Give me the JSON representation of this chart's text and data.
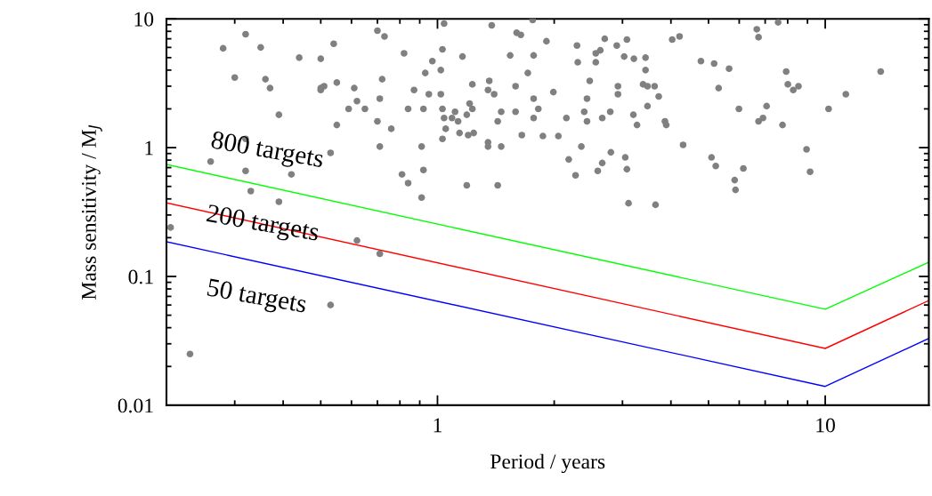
{
  "chart_data": {
    "type": "scatter",
    "xlabel": "Period / years",
    "ylabel": "Mass sensitivity / M$_{J}$",
    "log": "xy",
    "grid": false,
    "legend": false,
    "xlim": [
      0.2,
      18.5
    ],
    "ylim": [
      0.01,
      10
    ],
    "xticks": [
      1,
      10
    ],
    "yticks": [
      0.01,
      0.1,
      1,
      10
    ],
    "series": [
      {
        "type": "scatter",
        "color": "#808080",
        "marker": "circle",
        "x": [
          0.32,
          0.28,
          0.35,
          0.44,
          0.5,
          0.54,
          0.7,
          0.73,
          0.82,
          1.04,
          1.03,
          0.3,
          0.36,
          0.37,
          0.5,
          0.51,
          0.5,
          0.55,
          0.61,
          0.72,
          0.93,
          0.97,
          1.02,
          0.62,
          0.59,
          0.65,
          0.71,
          0.87,
          0.95,
          1.02,
          0.84,
          0.92,
          1.03,
          1.04,
          0.39,
          0.55,
          0.7,
          0.76,
          1.03,
          1.05,
          0.32,
          0.71,
          0.91,
          0.53,
          0.26,
          0.32,
          0.42,
          0.81,
          0.92,
          0.84,
          0.33,
          0.39,
          0.91,
          0.205,
          0.62,
          0.71,
          0.53,
          0.23,
          1.38,
          1.76,
          1.6,
          1.64,
          1.91,
          2.29,
          2.7,
          3.08,
          2.9,
          4.03,
          4.21,
          1.16,
          1.54,
          1.77,
          2.56,
          2.63,
          3.03,
          3.21,
          3.44,
          2.3,
          2.56,
          3.44,
          1.71,
          1.36,
          1.23,
          2.47,
          1.59,
          3.39,
          3.48,
          3.63,
          2.92,
          1.35,
          1.4,
          1.99,
          2.92,
          2.43,
          3.72,
          1.77,
          1.21,
          1.23,
          1.82,
          1.46,
          1.59,
          2.39,
          2.43,
          2.79,
          3.48,
          3.2,
          1.19,
          1.09,
          1.11,
          1.13,
          2.15,
          2.66,
          1.77,
          1.43,
          3.27,
          3.86,
          3.89,
          1.14,
          1.2,
          1.24,
          1.65,
          1.87,
          2.05,
          1.35,
          1.35,
          1.46,
          2.35,
          4.3,
          2.8,
          2.18,
          3.05,
          2.66,
          3.08,
          2.59,
          2.27,
          1.19,
          1.43,
          3.11,
          3.65,
          7.56,
          6.66,
          6.73,
          4.78,
          5.17,
          5.65,
          7.93,
          13.9,
          8.01,
          8.53,
          8.27,
          5.31,
          11.3,
          5.99,
          7.06,
          10.2,
          6.91,
          6.73,
          7.76,
          8.95,
          5.09,
          5.22,
          6.15,
          9.14,
          5.84,
          5.87
        ],
        "values": [
          7.6,
          5.9,
          6.0,
          5.0,
          4.9,
          6.4,
          8.1,
          7.3,
          5.4,
          9.2,
          5.8,
          3.5,
          3.4,
          2.9,
          2.9,
          3.0,
          2.8,
          3.2,
          2.9,
          3.4,
          3.8,
          4.7,
          4.0,
          2.3,
          2.0,
          2.0,
          2.4,
          2.8,
          2.6,
          2.6,
          2.0,
          2.0,
          2.0,
          1.7,
          1.8,
          1.5,
          1.6,
          1.4,
          1.17,
          1.4,
          1.17,
          1.02,
          1.02,
          0.91,
          0.78,
          0.66,
          0.62,
          0.62,
          0.67,
          0.53,
          0.46,
          0.38,
          0.41,
          0.24,
          0.19,
          0.15,
          0.06,
          0.025,
          8.9,
          9.8,
          7.8,
          7.5,
          6.7,
          6.2,
          7.0,
          6.9,
          6.2,
          6.9,
          7.3,
          5.1,
          5.2,
          5.2,
          5.4,
          5.7,
          5.1,
          4.9,
          5.0,
          4.6,
          4.6,
          4.0,
          3.8,
          3.3,
          3.1,
          3.3,
          3.0,
          3.1,
          3.0,
          3.0,
          3.0,
          2.8,
          2.6,
          2.7,
          2.6,
          2.4,
          2.5,
          2.4,
          2.2,
          2.0,
          2.0,
          1.9,
          1.9,
          1.9,
          1.6,
          1.9,
          2.1,
          1.8,
          1.8,
          1.7,
          1.9,
          1.6,
          1.7,
          1.7,
          1.7,
          1.6,
          1.5,
          1.6,
          1.5,
          1.3,
          1.25,
          1.3,
          1.25,
          1.23,
          1.23,
          1.1,
          1.02,
          1.02,
          1.02,
          1.05,
          0.92,
          0.81,
          0.84,
          0.76,
          0.68,
          0.66,
          0.61,
          0.51,
          0.51,
          0.37,
          0.36,
          9.4,
          8.3,
          7.2,
          4.7,
          4.5,
          4.1,
          3.9,
          3.9,
          3.1,
          3.0,
          2.8,
          2.9,
          2.6,
          2.0,
          2.1,
          2.0,
          1.7,
          1.6,
          1.5,
          0.97,
          0.84,
          0.72,
          0.69,
          0.65,
          0.56,
          0.47
        ]
      },
      {
        "type": "line",
        "color": "#00ff00",
        "marker": "none",
        "line_style": "solid",
        "x": [
          0.2,
          10,
          18.5
        ],
        "values": [
          0.74,
          0.0556,
          0.129
        ]
      },
      {
        "type": "line",
        "color": "#ff0000",
        "marker": "none",
        "line_style": "solid",
        "x": [
          0.2,
          10,
          18.5
        ],
        "values": [
          0.373,
          0.0276,
          0.065
        ]
      },
      {
        "type": "line",
        "color": "#0000ff",
        "marker": "none",
        "line_style": "solid",
        "x": [
          0.2,
          10,
          18.5
        ],
        "values": [
          0.186,
          0.014,
          0.033
        ]
      }
    ],
    "annotations": [
      "800 targets",
      "200 targets",
      "50 targets"
    ]
  }
}
